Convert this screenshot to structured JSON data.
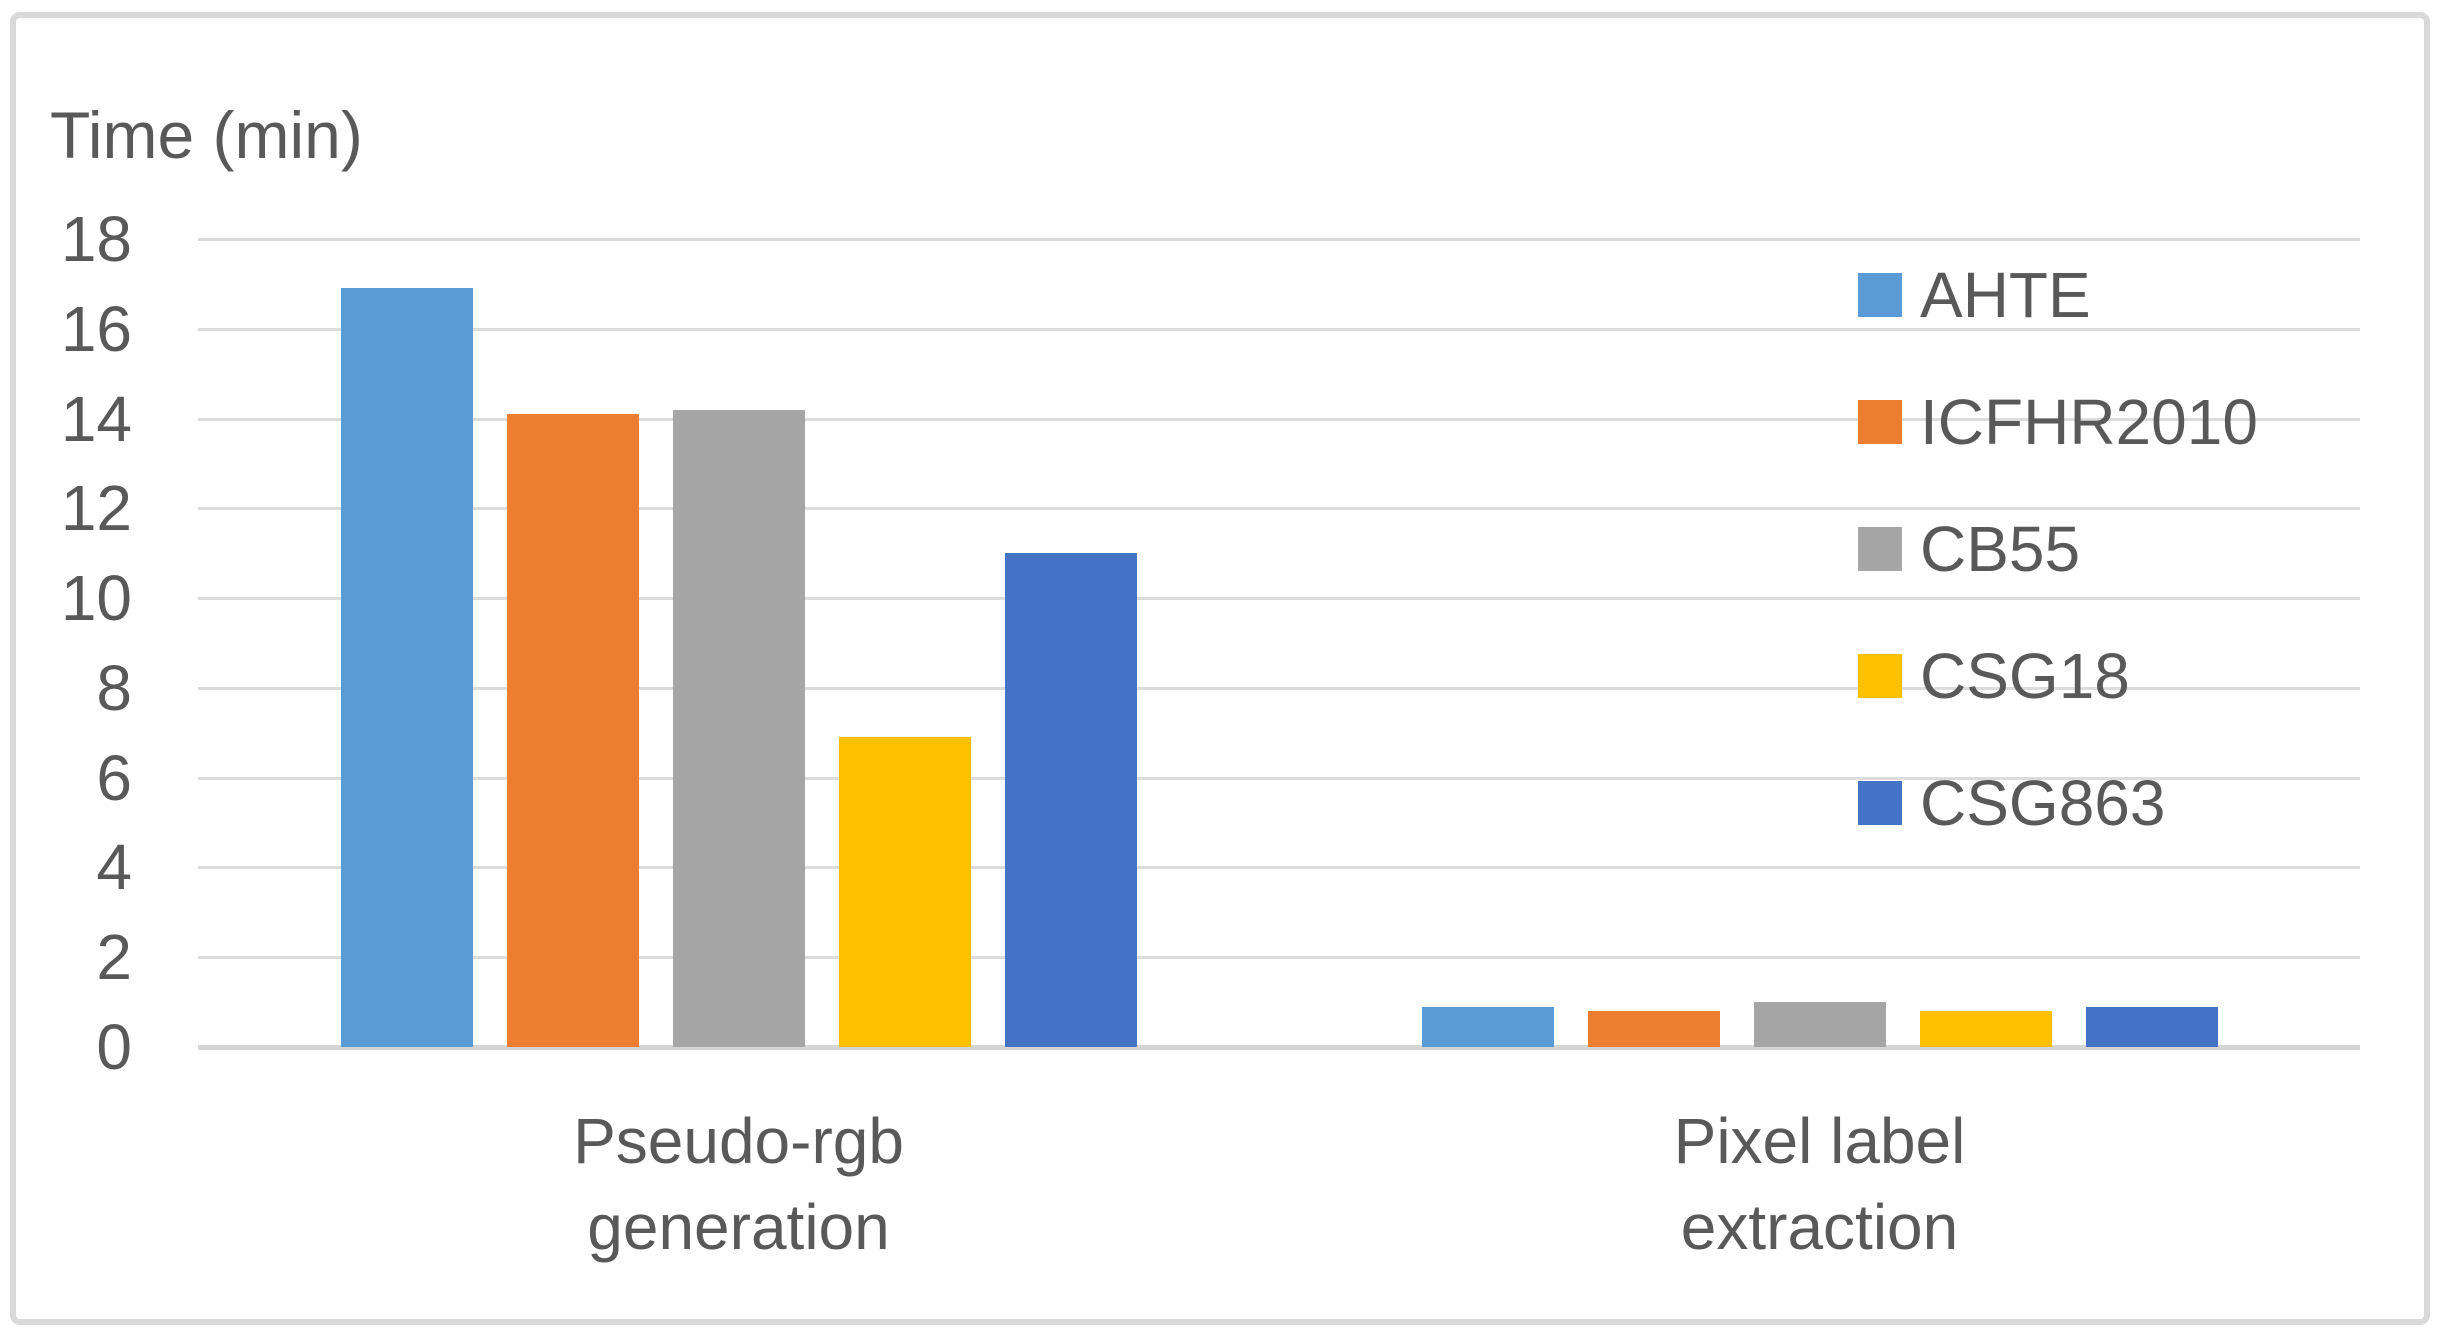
{
  "chart_data": {
    "type": "bar",
    "title": "Time (min)",
    "categories": [
      "Pseudo-rgb\ngeneration",
      "Pixel label\nextraction"
    ],
    "series": [
      {
        "name": "AHTE",
        "color": "#5B9BD5",
        "values": [
          16.9,
          0.9
        ]
      },
      {
        "name": "ICFHR2010",
        "color": "#ED7D31",
        "values": [
          14.1,
          0.8
        ]
      },
      {
        "name": "CB55",
        "color": "#A6A6A6",
        "values": [
          14.2,
          1.0
        ]
      },
      {
        "name": "CSG18",
        "color": "#FFC000",
        "values": [
          6.9,
          0.8
        ]
      },
      {
        "name": "CSG863",
        "color": "#4472C4",
        "values": [
          11.0,
          0.9
        ]
      }
    ],
    "ylabel": "Time (min)",
    "ylim": [
      0,
      18
    ],
    "ytick_step": 2,
    "ytick_labels": [
      "18",
      "16",
      "14",
      "12",
      "10",
      "8",
      "6",
      "4",
      "2",
      "0"
    ],
    "grid": true,
    "legend_position": "right-inside"
  },
  "styles": {
    "text_color": "#595959",
    "gridline_color": "#dcdcdc",
    "axisline_color": "#d5d5d5",
    "frame_border_color": "#d9d9d9",
    "background": "#ffffff"
  }
}
